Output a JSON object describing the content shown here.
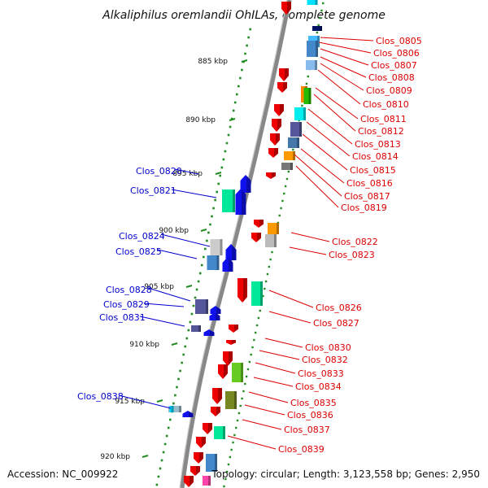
{
  "title": "Alkaliphilus oremlandii OhILAs, complete genome",
  "footer": {
    "accession": "Accession: NC_009922",
    "topology": "Topology: circular; Length: 3,123,558 bp; Genes: 2,950"
  },
  "colors": {
    "forward_label": "#0000cc",
    "reverse_label": "#dd0000",
    "backbone": "#888888",
    "scale": "#228b22"
  },
  "scale_labels": [
    "885 kbp",
    "890 kbp",
    "895 kbp",
    "900 kbp",
    "905 kbp",
    "910 kbp",
    "915 kbp",
    "920 kbp"
  ],
  "forward_genes": [
    "Clos_0820",
    "Clos_0821",
    "Clos_0824",
    "Clos_0825",
    "Clos_0828",
    "Clos_0829",
    "Clos_0831",
    "Clos_0838"
  ],
  "reverse_genes": [
    "Clos_0805",
    "Clos_0806",
    "Clos_0807",
    "Clos_0808",
    "Clos_0809",
    "Clos_0810",
    "Clos_0811",
    "Clos_0812",
    "Clos_0813",
    "Clos_0814",
    "Clos_0815",
    "Clos_0816",
    "Clos_0817",
    "Clos_0819",
    "Clos_0822",
    "Clos_0823",
    "Clos_0826",
    "Clos_0827",
    "Clos_0830",
    "Clos_0832",
    "Clos_0833",
    "Clos_0834",
    "Clos_0835",
    "Clos_0836",
    "Clos_0837",
    "Clos_0839"
  ]
}
